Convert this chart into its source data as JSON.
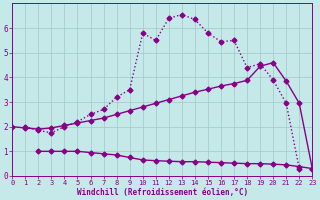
{
  "background_color": "#c5e8e8",
  "grid_color": "#a0c8c8",
  "line_color": "#880088",
  "xlabel": "Windchill (Refroidissement éolien,°C)",
  "xlim": [
    0,
    23
  ],
  "ylim": [
    0,
    7
  ],
  "xticks": [
    0,
    1,
    2,
    3,
    4,
    5,
    6,
    7,
    8,
    9,
    10,
    11,
    12,
    13,
    14,
    15,
    16,
    17,
    18,
    19,
    20,
    21,
    22,
    23
  ],
  "yticks": [
    0,
    1,
    2,
    3,
    4,
    5,
    6
  ],
  "line1_x": [
    1,
    2,
    3,
    4,
    5,
    6,
    7,
    8,
    9,
    10,
    11,
    12,
    13,
    14,
    15,
    16,
    17,
    18,
    19,
    20,
    21,
    22
  ],
  "line1_y": [
    2.0,
    1.85,
    1.75,
    2.0,
    2.2,
    2.5,
    2.7,
    3.2,
    3.5,
    5.8,
    5.5,
    6.4,
    6.55,
    6.35,
    5.8,
    5.45,
    5.5,
    4.4,
    4.55,
    3.9,
    2.95,
    0.3
  ],
  "line2_x": [
    0,
    1,
    2,
    3,
    4,
    5,
    6,
    7,
    8,
    9,
    10,
    11,
    12,
    13,
    14,
    15,
    16,
    17,
    18,
    19,
    20,
    21,
    22,
    23
  ],
  "line2_y": [
    2.0,
    1.95,
    1.9,
    1.95,
    2.05,
    2.15,
    2.25,
    2.35,
    2.5,
    2.65,
    2.8,
    2.95,
    3.1,
    3.25,
    3.4,
    3.52,
    3.65,
    3.75,
    3.88,
    4.45,
    4.6,
    3.85,
    2.95,
    0.3
  ],
  "line3_x": [
    2,
    3,
    4,
    5,
    6,
    7,
    8,
    9,
    10,
    11,
    12,
    13,
    14,
    15,
    16,
    17,
    18,
    19,
    20,
    21,
    22,
    23
  ],
  "line3_y": [
    1.0,
    1.0,
    1.0,
    1.0,
    0.95,
    0.9,
    0.85,
    0.75,
    0.65,
    0.62,
    0.6,
    0.58,
    0.58,
    0.56,
    0.54,
    0.52,
    0.5,
    0.5,
    0.48,
    0.45,
    0.38,
    0.3
  ],
  "line1_style": "dotted",
  "line2_style": "solid",
  "line3_style": "solid",
  "marker": "D",
  "markersize": 2.5,
  "linewidth": 1.0,
  "tick_fontsize": 5.0,
  "xlabel_fontsize": 5.5
}
